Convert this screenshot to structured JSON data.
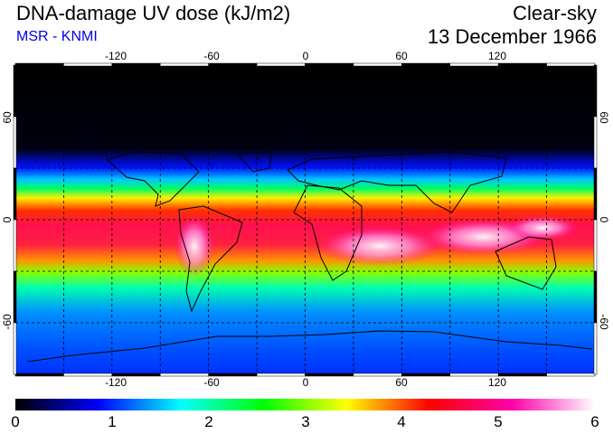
{
  "header": {
    "title": "DNA-damage UV dose (kJ/m2)",
    "source": "MSR - KNMI",
    "condition": "Clear-sky",
    "date": "13 December 1966"
  },
  "map": {
    "projection": "equirectangular",
    "lon_ticks": [
      "-120",
      "-60",
      "0",
      "60",
      "120"
    ],
    "lat_ticks_left": [
      "60",
      "0",
      "-60"
    ],
    "lat_ticks_right": [
      "60",
      "0",
      "-60"
    ],
    "grid": "dashed, every 30 degrees"
  },
  "colorbar": {
    "min": 0,
    "max": 6,
    "labels": [
      "0",
      "1",
      "2",
      "3",
      "4",
      "5",
      "6"
    ],
    "stops": [
      "#000000",
      "#0000ff",
      "#00ffff",
      "#00ff00",
      "#ffff00",
      "#ff0000",
      "#ff00aa",
      "#ffffff"
    ]
  }
}
